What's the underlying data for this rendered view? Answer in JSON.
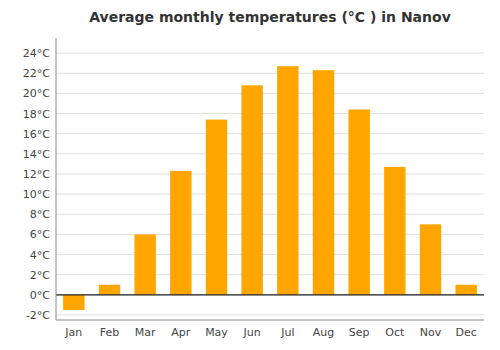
{
  "chart_data": {
    "type": "bar",
    "title": "Average monthly temperatures (°C ) in Nanov",
    "categories": [
      "Jan",
      "Feb",
      "Mar",
      "Apr",
      "May",
      "Jun",
      "Jul",
      "Aug",
      "Sep",
      "Oct",
      "Nov",
      "Dec"
    ],
    "values": [
      -1.5,
      1.0,
      6.0,
      12.3,
      17.4,
      20.8,
      22.7,
      22.3,
      18.4,
      12.7,
      7.0,
      1.0
    ],
    "color": "#FFA500",
    "ylim": [
      -2.5,
      25.5
    ],
    "yticks": [
      {
        "value": -2,
        "label": "-2°C"
      },
      {
        "value": 0,
        "label": "0°C"
      },
      {
        "value": 2,
        "label": "2°C"
      },
      {
        "value": 4,
        "label": "4°C"
      },
      {
        "value": 6,
        "label": "6°C"
      },
      {
        "value": 8,
        "label": "8°C"
      },
      {
        "value": 10,
        "label": "10°C"
      },
      {
        "value": 12,
        "label": "12°C"
      },
      {
        "value": 14,
        "label": "14°C"
      },
      {
        "value": 16,
        "label": "16°C"
      },
      {
        "value": 18,
        "label": "18°C"
      },
      {
        "value": 20,
        "label": "20°C"
      },
      {
        "value": 22,
        "label": "22°C"
      },
      {
        "value": 24,
        "label": "24°C"
      }
    ],
    "grid": true
  }
}
